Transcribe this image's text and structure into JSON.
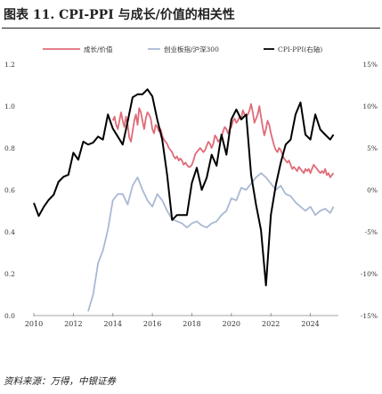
{
  "figure": {
    "title": "图表 11. CPI-PPI 与成长/价值的相关性",
    "source": "资料来源：万得，中银证券"
  },
  "chart_data": {
    "type": "line",
    "legend": [
      "成长/价值",
      "创业板指/沪深300",
      "CPI-PPI(右轴)"
    ],
    "colors": [
      "#e06b78",
      "#a9b9d4",
      "#000000"
    ],
    "x_ticks": [
      "2010",
      "2012",
      "2014",
      "2016",
      "2018",
      "2020",
      "2022",
      "2024"
    ],
    "xlim": [
      "2010-01",
      "2025-06"
    ],
    "y_left": {
      "ticks": [
        "0.0",
        "0.2",
        "0.4",
        "0.6",
        "0.8",
        "1.0",
        "1.2"
      ],
      "range": [
        0,
        1.2
      ]
    },
    "y_right": {
      "ticks": [
        "15%",
        "10%",
        "5%",
        "0%",
        "-5%",
        "-10%",
        "-15%"
      ],
      "range": [
        -15,
        10
      ]
    },
    "series": [
      {
        "name": "成长/价值",
        "axis": "left",
        "color": "#e06b78",
        "x": [
          "2014-01",
          "2014-02",
          "2014-03",
          "2014-04",
          "2014-05",
          "2014-06",
          "2014-07",
          "2014-08",
          "2014-09",
          "2014-10",
          "2014-11",
          "2014-12",
          "2015-01",
          "2015-02",
          "2015-03",
          "2015-04",
          "2015-05",
          "2015-06",
          "2015-07",
          "2015-08",
          "2015-09",
          "2015-10",
          "2015-11",
          "2015-12",
          "2016-01",
          "2016-02",
          "2016-03",
          "2016-04",
          "2016-05",
          "2016-06",
          "2016-07",
          "2016-08",
          "2016-09",
          "2016-10",
          "2016-11",
          "2016-12",
          "2017-01",
          "2017-02",
          "2017-03",
          "2017-04",
          "2017-05",
          "2017-06",
          "2017-07",
          "2017-08",
          "2017-09",
          "2017-10",
          "2017-11",
          "2017-12",
          "2018-01",
          "2018-02",
          "2018-03",
          "2018-04",
          "2018-05",
          "2018-06",
          "2018-07",
          "2018-08",
          "2018-09",
          "2018-10",
          "2018-11",
          "2018-12",
          "2019-01",
          "2019-02",
          "2019-03",
          "2019-04",
          "2019-05",
          "2019-06",
          "2019-07",
          "2019-08",
          "2019-09",
          "2019-10",
          "2019-11",
          "2019-12",
          "2020-01",
          "2020-02",
          "2020-03",
          "2020-04",
          "2020-05",
          "2020-06",
          "2020-07",
          "2020-08",
          "2020-09",
          "2020-10",
          "2020-11",
          "2020-12",
          "2021-01",
          "2021-02",
          "2021-03",
          "2021-04",
          "2021-05",
          "2021-06",
          "2021-07",
          "2021-08",
          "2021-09",
          "2021-10",
          "2021-11",
          "2021-12",
          "2022-01",
          "2022-02",
          "2022-03",
          "2022-04",
          "2022-05",
          "2022-06",
          "2022-07",
          "2022-08",
          "2022-09",
          "2022-10",
          "2022-11",
          "2022-12",
          "2023-01",
          "2023-02",
          "2023-03",
          "2023-04",
          "2023-05",
          "2023-06",
          "2023-07",
          "2023-08",
          "2023-09",
          "2023-10",
          "2023-11",
          "2023-12",
          "2024-01",
          "2024-02",
          "2024-03",
          "2024-04",
          "2024-05",
          "2024-06",
          "2024-07",
          "2024-08",
          "2024-09",
          "2024-10",
          "2024-11",
          "2024-12",
          "2025-01",
          "2025-02",
          "2025-03"
        ],
        "y": [
          0.93,
          0.95,
          0.91,
          0.89,
          0.93,
          0.97,
          0.93,
          0.9,
          0.95,
          0.91,
          0.85,
          0.83,
          0.88,
          0.93,
          0.96,
          0.91,
          0.99,
          0.97,
          0.93,
          0.89,
          0.94,
          0.97,
          0.96,
          0.94,
          0.89,
          0.87,
          0.91,
          0.9,
          0.88,
          0.89,
          0.86,
          0.84,
          0.83,
          0.82,
          0.8,
          0.79,
          0.78,
          0.76,
          0.75,
          0.76,
          0.74,
          0.75,
          0.74,
          0.72,
          0.73,
          0.72,
          0.71,
          0.71,
          0.72,
          0.74,
          0.77,
          0.78,
          0.79,
          0.8,
          0.79,
          0.78,
          0.79,
          0.81,
          0.83,
          0.82,
          0.8,
          0.82,
          0.86,
          0.85,
          0.83,
          0.84,
          0.85,
          0.88,
          0.9,
          0.89,
          0.87,
          0.89,
          0.9,
          0.93,
          0.94,
          0.92,
          0.93,
          0.95,
          0.94,
          0.98,
          0.96,
          0.95,
          0.96,
          0.98,
          1.01,
          0.97,
          0.92,
          0.94,
          0.96,
          1.0,
          0.95,
          0.9,
          0.86,
          0.89,
          0.93,
          0.91,
          0.87,
          0.84,
          0.81,
          0.79,
          0.78,
          0.8,
          0.79,
          0.77,
          0.75,
          0.74,
          0.73,
          0.74,
          0.72,
          0.7,
          0.71,
          0.7,
          0.69,
          0.71,
          0.7,
          0.69,
          0.68,
          0.7,
          0.69,
          0.7,
          0.68,
          0.7,
          0.72,
          0.71,
          0.7,
          0.69,
          0.68,
          0.69,
          0.68,
          0.7,
          0.67,
          0.68,
          0.66,
          0.67,
          0.68
        ]
      },
      {
        "name": "创业板指/沪深300",
        "axis": "left",
        "color": "#a9b9d4",
        "x": [
          "2010-01",
          "2010-04",
          "2010-07",
          "2010-10",
          "2011-01",
          "2011-04",
          "2011-07",
          "2011-10",
          "2012-01",
          "2012-04",
          "2012-07",
          "2012-10",
          "2013-01",
          "2013-04",
          "2013-07",
          "2013-10",
          "2014-01",
          "2014-04",
          "2014-07",
          "2014-10",
          "2015-01",
          "2015-04",
          "2015-07",
          "2015-10",
          "2016-01",
          "2016-04",
          "2016-07",
          "2016-10",
          "2017-01",
          "2017-04",
          "2017-07",
          "2017-10",
          "2018-01",
          "2018-04",
          "2018-07",
          "2018-10",
          "2019-01",
          "2019-04",
          "2019-07",
          "2019-10",
          "2020-01",
          "2020-04",
          "2020-07",
          "2020-10",
          "2021-01",
          "2021-04",
          "2021-07",
          "2021-10",
          "2022-01",
          "2022-04",
          "2022-07",
          "2022-10",
          "2023-01",
          "2023-04",
          "2023-07",
          "2023-10",
          "2024-01",
          "2024-04",
          "2024-07",
          "2024-10",
          "2025-01",
          "2025-03"
        ],
        "y": [
          null,
          null,
          null,
          null,
          null,
          null,
          null,
          null,
          null,
          null,
          null,
          0.02,
          0.1,
          0.25,
          0.31,
          0.41,
          0.55,
          0.58,
          0.58,
          0.53,
          0.62,
          0.66,
          0.6,
          0.55,
          0.52,
          0.58,
          0.55,
          0.5,
          0.46,
          0.45,
          0.44,
          0.42,
          0.44,
          0.45,
          0.43,
          0.42,
          0.44,
          0.45,
          0.48,
          0.5,
          0.56,
          0.55,
          0.61,
          0.6,
          0.63,
          0.66,
          0.68,
          0.66,
          0.63,
          0.6,
          0.62,
          0.58,
          0.57,
          0.54,
          0.52,
          0.5,
          0.52,
          0.48,
          0.5,
          0.51,
          0.49,
          0.52
        ]
      },
      {
        "name": "CPI-PPI(右轴)",
        "axis": "right",
        "color": "#000000",
        "x": [
          "2010-01",
          "2010-04",
          "2010-07",
          "2010-10",
          "2011-01",
          "2011-04",
          "2011-07",
          "2011-10",
          "2012-01",
          "2012-04",
          "2012-07",
          "2012-10",
          "2013-01",
          "2013-04",
          "2013-07",
          "2013-10",
          "2014-01",
          "2014-04",
          "2014-07",
          "2014-10",
          "2015-01",
          "2015-04",
          "2015-07",
          "2015-10",
          "2016-01",
          "2016-04",
          "2016-07",
          "2016-10",
          "2017-01",
          "2017-04",
          "2017-07",
          "2017-10",
          "2018-01",
          "2018-04",
          "2018-07",
          "2018-10",
          "2019-01",
          "2019-04",
          "2019-07",
          "2019-10",
          "2020-01",
          "2020-04",
          "2020-07",
          "2020-10",
          "2021-01",
          "2021-04",
          "2021-07",
          "2021-10",
          "2022-01",
          "2022-04",
          "2022-07",
          "2022-10",
          "2023-01",
          "2023-04",
          "2023-07",
          "2023-10",
          "2024-01",
          "2024-04",
          "2024-07",
          "2024-10",
          "2025-01",
          "2025-03"
        ],
        "y": [
          -3.8,
          -5.1,
          -4.2,
          -3.5,
          -3.0,
          -1.7,
          -1.2,
          -1.0,
          1.2,
          0.5,
          2.3,
          2.0,
          2.2,
          2.8,
          2.5,
          5.0,
          3.6,
          2.8,
          2.0,
          4.3,
          6.7,
          7.0,
          7.0,
          7.5,
          6.8,
          4.5,
          2.5,
          -1.0,
          -5.5,
          -5.0,
          -5.0,
          -5.0,
          -1.8,
          -0.3,
          -2.5,
          -1.3,
          1.0,
          -0.1,
          3.0,
          1.0,
          4.5,
          5.5,
          4.5,
          5.0,
          -1.0,
          -4.0,
          -6.5,
          -12.0,
          -5.0,
          -2.0,
          0.2,
          2.0,
          2.5,
          5.0,
          6.2,
          3.0,
          2.5,
          5.0,
          3.5,
          3.0,
          2.5,
          3.0
        ]
      }
    ]
  }
}
